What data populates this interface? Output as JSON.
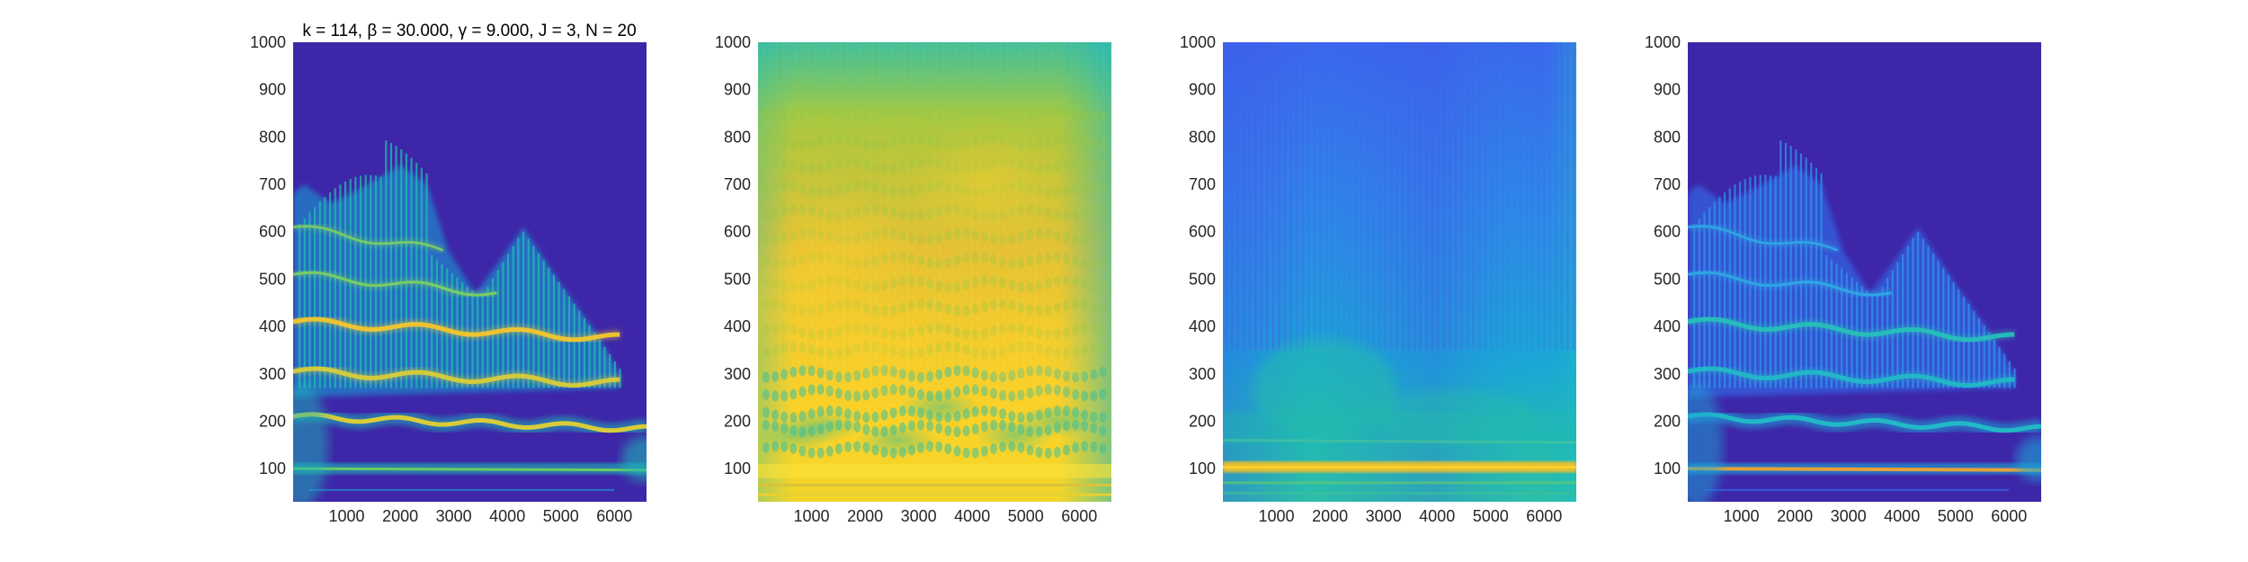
{
  "figure": {
    "title": "k = 114, β = 30.000, γ = 9.000, J = 3, N = 20"
  },
  "colors": {
    "background": "#3e26a8",
    "colormap": [
      "#3e26a8",
      "#4150e1",
      "#2f79f5",
      "#17a5d8",
      "#1fc0aa",
      "#6ccb60",
      "#d0bb37",
      "#fcd02b",
      "#f9fb15"
    ]
  },
  "chart_data": [
    {
      "type": "heatmap",
      "title": "k = 114, β = 30.000, γ = 9.000, J = 3, N = 20",
      "xlabel": "",
      "ylabel": "",
      "xlim": [
        0,
        6600
      ],
      "ylim": [
        30,
        1000
      ],
      "x_ticks": [
        1000,
        2000,
        3000,
        4000,
        5000,
        6000
      ],
      "y_ticks": [
        100,
        200,
        300,
        400,
        500,
        600,
        700,
        800,
        900,
        1000
      ],
      "colormap": "parula",
      "grid": false,
      "description_ridges_y": [
        100,
        200,
        300,
        400,
        500,
        600
      ]
    },
    {
      "type": "heatmap",
      "title": "",
      "xlabel": "",
      "ylabel": "",
      "xlim": [
        0,
        6600
      ],
      "ylim": [
        30,
        1000
      ],
      "x_ticks": [
        1000,
        2000,
        3000,
        4000,
        5000,
        6000
      ],
      "y_ticks": [
        100,
        200,
        300,
        400,
        500,
        600,
        700,
        800,
        900,
        1000
      ],
      "colormap": "parula",
      "grid": false
    },
    {
      "type": "heatmap",
      "title": "",
      "xlabel": "",
      "ylabel": "",
      "xlim": [
        0,
        6600
      ],
      "ylim": [
        30,
        1000
      ],
      "x_ticks": [
        1000,
        2000,
        3000,
        4000,
        5000,
        6000
      ],
      "y_ticks": [
        100,
        200,
        300,
        400,
        500,
        600,
        700,
        800,
        900,
        1000
      ],
      "colormap": "parula",
      "grid": false
    },
    {
      "type": "heatmap",
      "title": "",
      "xlabel": "",
      "ylabel": "",
      "xlim": [
        0,
        6600
      ],
      "ylim": [
        30,
        1000
      ],
      "x_ticks": [
        1000,
        2000,
        3000,
        4000,
        5000,
        6000
      ],
      "y_ticks": [
        100,
        200,
        300,
        400,
        500,
        600,
        700,
        800,
        900,
        1000
      ],
      "colormap": "parula",
      "grid": false
    }
  ]
}
